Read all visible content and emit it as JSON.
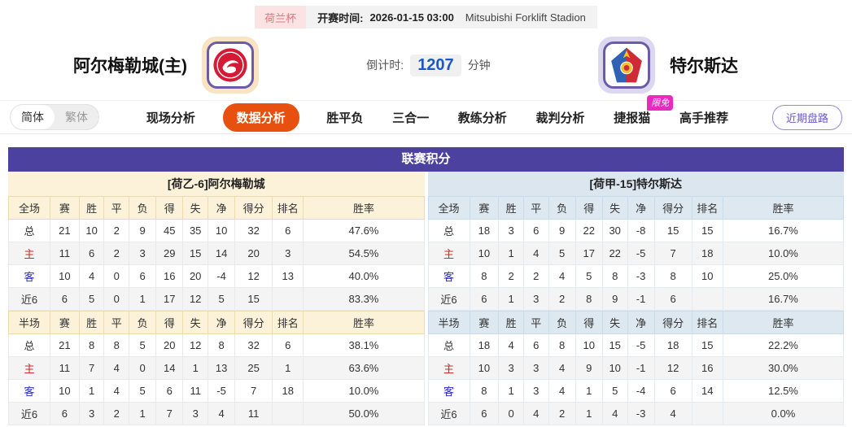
{
  "header": {
    "league_badge": "荷兰杯",
    "kickoff_label": "开赛时间:",
    "kickoff_time": "2026-01-15 03:00",
    "stadium": "Mitsubishi Forklift Stadion",
    "home_name": "阿尔梅勒城(主)",
    "away_name": "特尔斯达",
    "countdown_label": "倒计时:",
    "countdown_value": "1207",
    "countdown_unit": "分钟"
  },
  "nav": {
    "lang_simplified": "简体",
    "lang_traditional": "繁体",
    "tabs": [
      {
        "label": "现场分析",
        "active": false
      },
      {
        "label": "数据分析",
        "active": true
      },
      {
        "label": "胜平负",
        "active": false
      },
      {
        "label": "三合一",
        "active": false
      },
      {
        "label": "教练分析",
        "active": false
      },
      {
        "label": "裁判分析",
        "active": false
      },
      {
        "label": "捷报猫",
        "active": false,
        "badge": "限免"
      },
      {
        "label": "高手推荐",
        "active": false
      }
    ],
    "recent_button": "近期盘路"
  },
  "table": {
    "title": "联赛积分",
    "home": {
      "header": "[荷乙-6]阿尔梅勒城",
      "full": {
        "columns": [
          "全场",
          "赛",
          "胜",
          "平",
          "负",
          "得",
          "失",
          "净",
          "得分",
          "排名",
          "胜率"
        ],
        "rows": [
          {
            "label": "总",
            "cells": [
              "21",
              "10",
              "2",
              "9",
              "45",
              "35",
              "10",
              "32",
              "6",
              "47.6%"
            ]
          },
          {
            "label": "主",
            "cells": [
              "11",
              "6",
              "2",
              "3",
              "29",
              "15",
              "14",
              "20",
              "3",
              "54.5%"
            ]
          },
          {
            "label": "客",
            "cells": [
              "10",
              "4",
              "0",
              "6",
              "16",
              "20",
              "-4",
              "12",
              "13",
              "40.0%"
            ]
          },
          {
            "label": "近6",
            "cells": [
              "6",
              "5",
              "0",
              "1",
              "17",
              "12",
              "5",
              "15",
              "",
              "83.3%"
            ]
          }
        ]
      },
      "half": {
        "columns": [
          "半场",
          "赛",
          "胜",
          "平",
          "负",
          "得",
          "失",
          "净",
          "得分",
          "排名",
          "胜率"
        ],
        "rows": [
          {
            "label": "总",
            "cells": [
              "21",
              "8",
              "8",
              "5",
              "20",
              "12",
              "8",
              "32",
              "6",
              "38.1%"
            ]
          },
          {
            "label": "主",
            "cells": [
              "11",
              "7",
              "4",
              "0",
              "14",
              "1",
              "13",
              "25",
              "1",
              "63.6%"
            ]
          },
          {
            "label": "客",
            "cells": [
              "10",
              "1",
              "4",
              "5",
              "6",
              "11",
              "-5",
              "7",
              "18",
              "10.0%"
            ]
          },
          {
            "label": "近6",
            "cells": [
              "6",
              "3",
              "2",
              "1",
              "7",
              "3",
              "4",
              "11",
              "",
              "50.0%"
            ]
          }
        ]
      }
    },
    "away": {
      "header": "[荷甲-15]特尔斯达",
      "full": {
        "columns": [
          "全场",
          "赛",
          "胜",
          "平",
          "负",
          "得",
          "失",
          "净",
          "得分",
          "排名",
          "胜率"
        ],
        "rows": [
          {
            "label": "总",
            "cells": [
              "18",
              "3",
              "6",
              "9",
              "22",
              "30",
              "-8",
              "15",
              "15",
              "16.7%"
            ]
          },
          {
            "label": "主",
            "cells": [
              "10",
              "1",
              "4",
              "5",
              "17",
              "22",
              "-5",
              "7",
              "18",
              "10.0%"
            ]
          },
          {
            "label": "客",
            "cells": [
              "8",
              "2",
              "2",
              "4",
              "5",
              "8",
              "-3",
              "8",
              "10",
              "25.0%"
            ]
          },
          {
            "label": "近6",
            "cells": [
              "6",
              "1",
              "3",
              "2",
              "8",
              "9",
              "-1",
              "6",
              "",
              "16.7%"
            ]
          }
        ]
      },
      "half": {
        "columns": [
          "半场",
          "赛",
          "胜",
          "平",
          "负",
          "得",
          "失",
          "净",
          "得分",
          "排名",
          "胜率"
        ],
        "rows": [
          {
            "label": "总",
            "cells": [
              "18",
              "4",
              "6",
              "8",
              "10",
              "15",
              "-5",
              "18",
              "15",
              "22.2%"
            ]
          },
          {
            "label": "主",
            "cells": [
              "10",
              "3",
              "3",
              "4",
              "9",
              "10",
              "-1",
              "12",
              "16",
              "30.0%"
            ]
          },
          {
            "label": "客",
            "cells": [
              "8",
              "1",
              "3",
              "4",
              "1",
              "5",
              "-4",
              "6",
              "14",
              "12.5%"
            ]
          },
          {
            "label": "近6",
            "cells": [
              "6",
              "0",
              "4",
              "2",
              "1",
              "4",
              "-3",
              "4",
              "",
              "0.0%"
            ]
          }
        ]
      }
    }
  },
  "colors": {
    "board_title_purple": "#4c419e",
    "active_tab_orange": "#e8500f",
    "limited_free_magenta": "#e92ac2",
    "home_header_cream": "#fcf1d9",
    "away_header_blue": "#dbe6ef",
    "home_row_red": "#cc2a2a",
    "away_row_blue": "#2929cc",
    "countdown_blue": "#1d56c5",
    "league_badge_pink": "#fbe3e3"
  }
}
